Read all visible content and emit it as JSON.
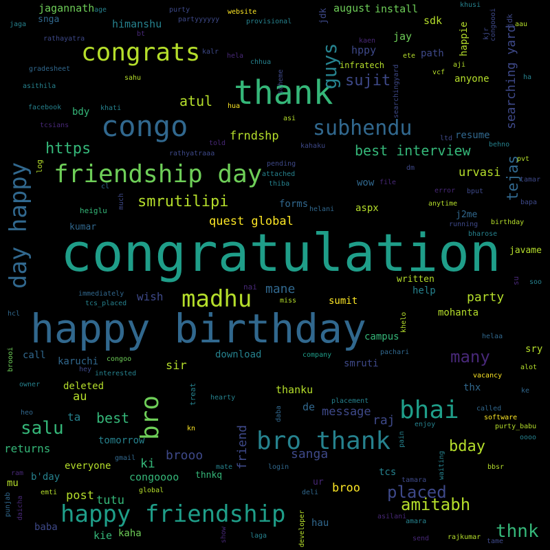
{
  "palette": {
    "background": "#000000",
    "yellow": "#fde725",
    "lime": "#b5de2b",
    "green": "#6ece58",
    "teal_green": "#35b779",
    "teal": "#1f9e89",
    "cyan": "#26828e",
    "blue": "#31688e",
    "indigo": "#3e4989",
    "violet": "#482878",
    "purple": "#440154"
  },
  "words": {
    "congratulation": "congratulation",
    "happy_birthday": "happy birthday",
    "thank": "thank",
    "congo": "congo",
    "congrats": "congrats",
    "friendship_day": "friendship day",
    "happy_friendship": "happy friendship",
    "bro_thank": "bro thank",
    "bhai": "bhai",
    "madhu": "madhu",
    "subhendu": "subhendu",
    "day_happy": "day happy",
    "bro": "bro",
    "guys": "guys",
    "smrutilipi": "smrutilipi",
    "https": "https",
    "best_interview": "best interview",
    "amitabh": "amitabh",
    "placed": "placed",
    "thnk": "thnk",
    "many": "many",
    "salu": "salu",
    "sujit": "sujit",
    "atul": "atul",
    "searching_yard": "searching yard",
    "tejas": "tejas",
    "bday": "bday",
    "party": "party",
    "quest_global": "quest global",
    "frndshp": "frndshp",
    "urvasi": "urvasi",
    "mane": "mane",
    "sanga": "sanga",
    "message": "message",
    "brooo": "brooo",
    "best": "best",
    "friend": "friend",
    "tutu": "tutu",
    "post": "post",
    "raj": "raj",
    "ki": "ki",
    "au": "au",
    "sir": "sir",
    "broo": "broo",
    "returns": "returns",
    "wish": "wish",
    "thanku": "thanku",
    "campus": "campus",
    "jagannath": "jagannath",
    "himanshu": "himanshu",
    "august": "august",
    "install": "install",
    "sdk": "sdk",
    "happie": "happie",
    "jay": "jay",
    "path": "path",
    "hppy": "hppy",
    "infratech": "infratech",
    "anyone": "anyone",
    "resume": "resume",
    "bdy": "bdy",
    "forms": "forms",
    "aspx": "aspx",
    "wow": "wow",
    "j2me": "j2me",
    "kumar": "kumar",
    "heiglu": "heiglu",
    "mohanta": "mohanta",
    "sumit": "sumit",
    "help": "help",
    "written": "written",
    "karuchi": "karuchi",
    "call": "call",
    "download": "download",
    "smruti": "smruti",
    "deleted": "deleted",
    "ta": "ta",
    "tomorrow": "tomorrow",
    "everyone": "everyone",
    "congoooo": "congoooo",
    "thnkq": "thnkq",
    "kie": "kie",
    "kaha": "kaha",
    "baba": "baba",
    "mu": "mu",
    "bday2": "b'day",
    "de": "de",
    "tcs": "tcs",
    "hau": "hau",
    "ur": "ur",
    "thx": "thx",
    "sry": "sry",
    "javame": "javame",
    "snga": "snga",
    "age": "age",
    "purty": "purty",
    "partyyyyyy": "partyyyyyy",
    "website": "website",
    "provisional": "provisional",
    "jdk": "jdk",
    "khusi": "khusi",
    "congoooi": "congoooi",
    "aau": "aau",
    "jaga": "jaga",
    "rathayatra": "rathayatra",
    "bt": "bt",
    "kalr": "kalr",
    "hela": "hela",
    "chhua": "chhua",
    "kaen": "kaen",
    "ete": "ete",
    "kjr": "kjr",
    "aji": "aji",
    "vcf": "vcf",
    "gradesheet": "gradesheet",
    "scheme": "scheme",
    "searchingyard": "searchingyard",
    "asithila": "asithila",
    "sahu": "sahu",
    "ha": "ha",
    "facebook": "facebook",
    "khati": "khati",
    "hua": "hua",
    "tcsians": "tcsians",
    "asi": "asi",
    "ltd": "ltd",
    "behno": "behno",
    "told": "told",
    "kahaku": "kahaku",
    "rathyatraaa": "rathyatraaa",
    "log": "log",
    "pending": "pending",
    "attached": "attached",
    "thiba": "thiba",
    "dm": "dm",
    "file": "file",
    "pvt": "pvt",
    "tamar": "tamar",
    "cl": "cl",
    "error": "error",
    "bput": "bput",
    "bapa": "bapa",
    "much": "much",
    "helani": "helani",
    "anytime": "anytime",
    "birthday": "birthday",
    "running": "running",
    "bharose": "bharose",
    "immediately": "immediately",
    "tcs_placed": "tcs_placed",
    "nai": "nai",
    "miss": "miss",
    "su": "su",
    "soo": "soo",
    "hcl": "hcl",
    "khelo": "khelo",
    "helaa": "helaa",
    "broooi": "broooi",
    "congoo": "congoo",
    "company": "company",
    "pachari": "pachari",
    "hey": "hey",
    "interested": "interested",
    "alot": "alot",
    "vacancy": "vacancy",
    "owner": "owner",
    "treat": "treat",
    "ke": "ke",
    "hearty": "hearty",
    "placement": "placement",
    "called": "called",
    "heo": "heo",
    "daba": "daba",
    "software": "software",
    "enjoy": "enjoy",
    "pain": "pain",
    "purty_babu": "purty_babu",
    "kn": "kn",
    "oooo": "oooo",
    "gmail": "gmail",
    "mate": "mate",
    "login": "login",
    "waiting": "waiting",
    "bbsr": "bbsr",
    "ram": "ram",
    "tamara": "tamara",
    "emti": "emti",
    "global": "global",
    "deli": "deli",
    "punjab": "punjab",
    "daicha": "daicha",
    "show": "show",
    "developer": "developer",
    "asilani": "asilani",
    "amara": "amara",
    "laga": "laga",
    "send": "send",
    "rajkumar": "rajkumar",
    "tame": "tame"
  }
}
